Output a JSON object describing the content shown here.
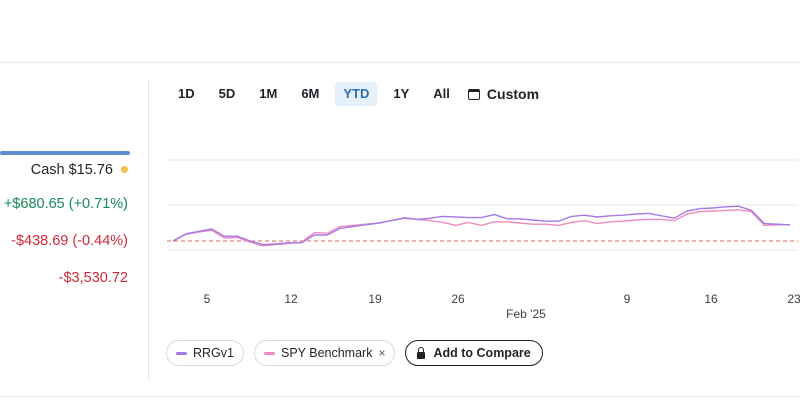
{
  "summary": {
    "cash_label": "Cash",
    "cash_value": "$15.76",
    "day_change": "+$680.65 (+0.71%)",
    "total_change": "-$438.69 (-0.44%)",
    "realized": "-$3,530.72",
    "progress_fraction": 1.0
  },
  "time_range": {
    "tabs": [
      "1D",
      "5D",
      "1M",
      "6M",
      "YTD",
      "1Y",
      "All"
    ],
    "active": "YTD",
    "custom_label": "Custom"
  },
  "chart_data": {
    "type": "line",
    "x_ticks": [
      "5",
      "12",
      "19",
      "26",
      "",
      "9",
      "16",
      "23"
    ],
    "x_sublabel": "Feb '25",
    "grid": true,
    "series": [
      {
        "name": "RRGv1",
        "color": "#a67ae8",
        "values": [
          0.5,
          0.62,
          0.66,
          0.7,
          0.58,
          0.58,
          0.5,
          0.44,
          0.45,
          0.47,
          0.47,
          0.6,
          0.6,
          0.71,
          0.74,
          0.77,
          0.8,
          0.84,
          0.88,
          0.86,
          0.88,
          0.91,
          0.9,
          0.89,
          0.89,
          0.94,
          0.87,
          0.87,
          0.85,
          0.83,
          0.83,
          0.91,
          0.93,
          0.9,
          0.92,
          0.93,
          0.95,
          0.96,
          0.92,
          0.88,
          1.0,
          1.04,
          1.05,
          1.07,
          1.08,
          1.01,
          0.79,
          0.78,
          0.77
        ]
      },
      {
        "name": "SPY Benchmark",
        "color": "#f08bbf",
        "values": [
          0.5,
          0.61,
          0.65,
          0.68,
          0.55,
          0.56,
          0.48,
          0.42,
          0.44,
          0.46,
          0.48,
          0.64,
          0.63,
          0.74,
          0.76,
          0.78,
          0.8,
          0.84,
          0.89,
          0.86,
          0.84,
          0.81,
          0.76,
          0.81,
          0.76,
          0.82,
          0.82,
          0.8,
          0.78,
          0.78,
          0.76,
          0.81,
          0.84,
          0.79,
          0.82,
          0.83,
          0.85,
          0.86,
          0.86,
          0.84,
          0.95,
          0.99,
          1.0,
          1.01,
          1.02,
          0.99,
          0.76,
          0.77,
          0.77
        ]
      }
    ],
    "reference_line": {
      "style": "dashed",
      "color": "#e0605c",
      "value": 0.0
    }
  },
  "legend": {
    "items": [
      {
        "label": "RRGv1",
        "color": "#a67ae8",
        "removable": false
      },
      {
        "label": "SPY Benchmark",
        "color": "#f08bbf",
        "removable": true
      }
    ],
    "close_glyph": "×",
    "add_label": "Add to Compare"
  }
}
